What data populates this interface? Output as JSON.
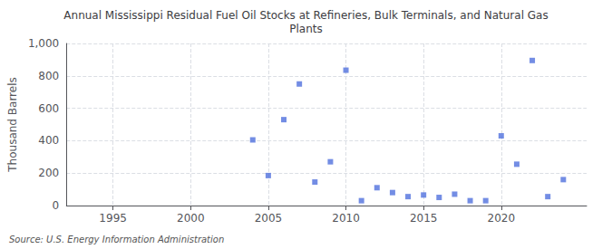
{
  "chart_data": {
    "type": "scatter",
    "title": "Annual Mississippi Residual Fuel Oil Stocks at Refineries, Bulk Terminals, and Natural Gas\nPlants",
    "ylabel": "Thousand Barrels",
    "annotation": "Source: U.S. Energy Information Administration",
    "marker": "square",
    "grid": true,
    "x": [
      2004,
      2005,
      2006,
      2007,
      2008,
      2009,
      2010,
      2011,
      2012,
      2013,
      2014,
      2015,
      2016,
      2017,
      2018,
      2019,
      2020,
      2021,
      2022,
      2023,
      2024
    ],
    "values": [
      405,
      185,
      530,
      750,
      145,
      270,
      835,
      30,
      110,
      80,
      55,
      65,
      50,
      70,
      30,
      30,
      430,
      255,
      895,
      55,
      160
    ],
    "xlim": [
      1992,
      2025.5
    ],
    "xticks": [
      1995,
      2000,
      2005,
      2010,
      2015,
      2020
    ],
    "ylim": [
      0,
      1000
    ],
    "yticks": [
      0,
      200,
      400,
      600,
      800,
      {
        "value": 1000,
        "label": "1,000"
      }
    ]
  }
}
